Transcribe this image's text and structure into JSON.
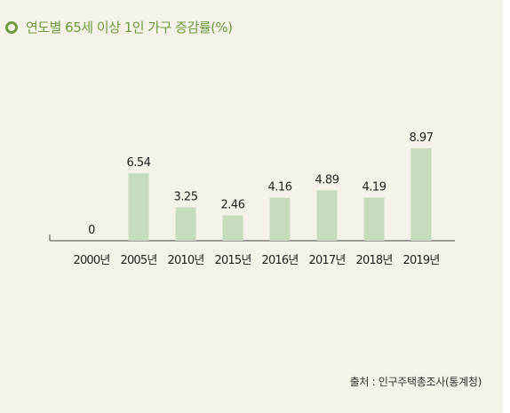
{
  "title": "연도별 65세 이상 1인 가구 증감률(%)",
  "source": "출처 : 인구주택총조사(통계청)",
  "colors": {
    "accent": "#6f9a3f",
    "bar": "#c7dbbf",
    "background": "#f5f2e9",
    "text": "#222222"
  },
  "icons": {
    "title_marker": "ring-icon"
  },
  "chart_data": {
    "type": "bar",
    "title": "연도별 65세 이상 1인 가구 증감률(%)",
    "categories": [
      "2000년",
      "2005년",
      "2010년",
      "2015년",
      "2016년",
      "2017년",
      "2018년",
      "2019년"
    ],
    "values": [
      0,
      6.54,
      3.25,
      2.46,
      4.16,
      4.89,
      4.19,
      8.97
    ],
    "value_labels": [
      "0",
      "6.54",
      "3.25",
      "2.46",
      "4.16",
      "4.89",
      "4.19",
      "8.97"
    ],
    "xlabel": "",
    "ylabel": "",
    "ylim": [
      0,
      10
    ],
    "grid": false,
    "legend": "none"
  }
}
